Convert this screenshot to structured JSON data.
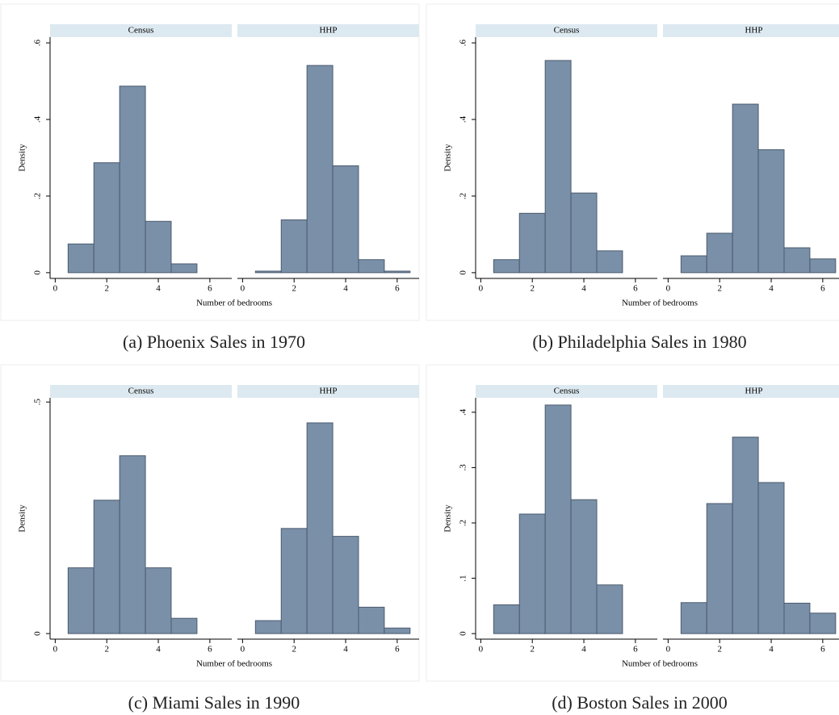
{
  "chart_data": [
    {
      "type": "histogram",
      "caption": "(a) Phoenix Sales in 1970",
      "xlabel": "Number of bedrooms",
      "ylabel": "Density",
      "bins": [
        0.5,
        1.5,
        2.5,
        3.5,
        4.5,
        5.5,
        6.5
      ],
      "xlim": [
        -0.2,
        6.85
      ],
      "xticks": [
        0,
        2,
        4,
        6
      ],
      "ylim": [
        -0.015,
        0.615
      ],
      "yticks": [
        0,
        {
          "value": 0.2,
          "label": ".2"
        },
        {
          "value": 0.4,
          "label": ".4"
        },
        {
          "value": 0.6,
          "label": ".6"
        }
      ],
      "color": "#7a90a8",
      "series": [
        {
          "name": "Census",
          "values": [
            0.075,
            0.287,
            0.487,
            0.134,
            0.023,
            0
          ]
        },
        {
          "name": "HHP",
          "values": [
            0.004,
            0.138,
            0.541,
            0.279,
            0.034,
            0.004
          ]
        }
      ]
    },
    {
      "type": "histogram",
      "caption": "(b) Philadelphia Sales in 1980",
      "xlabel": "Number of bedrooms",
      "ylabel": "Density",
      "bins": [
        0.5,
        1.5,
        2.5,
        3.5,
        4.5,
        5.5,
        6.5
      ],
      "xlim": [
        -0.2,
        6.85
      ],
      "xticks": [
        0,
        2,
        4,
        6
      ],
      "ylim": [
        -0.015,
        0.615
      ],
      "yticks": [
        0,
        {
          "value": 0.2,
          "label": ".2"
        },
        {
          "value": 0.4,
          "label": ".4"
        },
        {
          "value": 0.6,
          "label": ".6"
        }
      ],
      "color": "#7a90a8",
      "series": [
        {
          "name": "Census",
          "values": [
            0.034,
            0.155,
            0.554,
            0.208,
            0.057,
            0
          ]
        },
        {
          "name": "HHP",
          "values": [
            0.044,
            0.103,
            0.44,
            0.321,
            0.065,
            0.036
          ]
        }
      ]
    },
    {
      "type": "histogram",
      "caption": "(c) Miami Sales in 1990",
      "xlabel": "Number of bedrooms",
      "ylabel": "Density",
      "bins": [
        0.5,
        1.5,
        2.5,
        3.5,
        4.5,
        5.5,
        6.5
      ],
      "xlim": [
        -0.2,
        6.85
      ],
      "xticks": [
        0,
        2,
        4,
        6
      ],
      "ylim": [
        -0.012,
        0.509
      ],
      "yticks": [
        0,
        {
          "value": 0.5,
          "label": ".5"
        }
      ],
      "color": "#7a90a8",
      "series": [
        {
          "name": "Census",
          "values": [
            0.142,
            0.288,
            0.384,
            0.142,
            0.033,
            0
          ]
        },
        {
          "name": "HHP",
          "values": [
            0.028,
            0.227,
            0.455,
            0.21,
            0.057,
            0.012
          ]
        }
      ]
    },
    {
      "type": "histogram",
      "caption": "(d) Boston Sales in 2000",
      "xlabel": "Number of bedrooms",
      "ylabel": "Density",
      "bins": [
        0.5,
        1.5,
        2.5,
        3.5,
        4.5,
        5.5,
        6.5
      ],
      "xlim": [
        -0.2,
        6.85
      ],
      "xticks": [
        0,
        2,
        4,
        6
      ],
      "ylim": [
        -0.01,
        0.426
      ],
      "yticks": [
        0,
        {
          "value": 0.1,
          "label": ".1"
        },
        {
          "value": 0.2,
          "label": ".2"
        },
        {
          "value": 0.3,
          "label": ".3"
        },
        {
          "value": 0.4,
          "label": ".4"
        }
      ],
      "color": "#7a90a8",
      "series": [
        {
          "name": "Census",
          "values": [
            0.052,
            0.216,
            0.413,
            0.242,
            0.088,
            0
          ]
        },
        {
          "name": "HHP",
          "values": [
            0.056,
            0.235,
            0.355,
            0.273,
            0.055,
            0.037
          ]
        }
      ]
    }
  ]
}
